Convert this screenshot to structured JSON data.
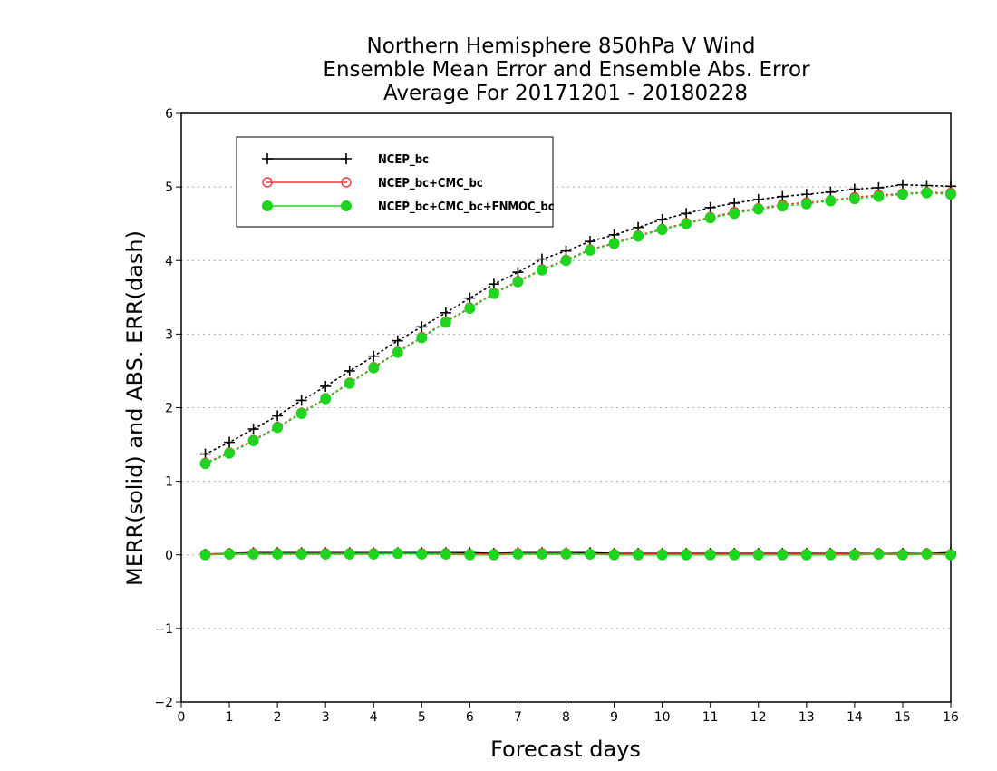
{
  "chart_data": {
    "type": "line",
    "title": [
      "Northern Hemisphere 850hPa V Wind",
      "Ensemble Mean Error and Ensemble Abs. Error",
      "Average For 20171201 - 20180228"
    ],
    "xlabel": "Forecast days",
    "ylabel": "MERR(solid) and ABS. ERR(dash)",
    "xlim": [
      0,
      16
    ],
    "ylim": [
      -2,
      6
    ],
    "x_ticks": [
      "0",
      "1",
      "2",
      "3",
      "4",
      "5",
      "6",
      "7",
      "8",
      "9",
      "10",
      "11",
      "12",
      "13",
      "14",
      "15",
      "16"
    ],
    "y_ticks": [
      "6",
      "5",
      "4",
      "3",
      "2",
      "1",
      "0",
      "−1",
      "−2"
    ],
    "grid": "horizontal dotted",
    "legend_position": "top-left",
    "x": [
      0.5,
      1,
      1.5,
      2,
      2.5,
      3,
      3.5,
      4,
      4.5,
      5,
      5.5,
      6,
      6.5,
      7,
      7.5,
      8,
      8.5,
      9,
      9.5,
      10,
      10.5,
      11,
      11.5,
      12,
      12.5,
      13,
      13.5,
      14,
      14.5,
      15,
      15.5,
      16
    ],
    "series": [
      {
        "name": "NCEP_bc",
        "color": "#000000",
        "marker": "plus",
        "abs_err": [
          1.37,
          1.53,
          1.71,
          1.89,
          2.1,
          2.29,
          2.5,
          2.7,
          2.91,
          3.1,
          3.29,
          3.49,
          3.68,
          3.84,
          4.02,
          4.13,
          4.26,
          4.35,
          4.45,
          4.56,
          4.64,
          4.72,
          4.78,
          4.83,
          4.87,
          4.9,
          4.93,
          4.97,
          4.99,
          5.03,
          5.02,
          5.01
        ],
        "mean_err": [
          0.01,
          0.02,
          0.03,
          0.03,
          0.03,
          0.03,
          0.03,
          0.03,
          0.03,
          0.03,
          0.03,
          0.03,
          0.02,
          0.03,
          0.03,
          0.03,
          0.03,
          0.02,
          0.02,
          0.02,
          0.02,
          0.02,
          0.02,
          0.02,
          0.02,
          0.02,
          0.02,
          0.02,
          0.02,
          0.02,
          0.02,
          0.03
        ]
      },
      {
        "name": "NCEP_bc+CMC_bc",
        "color": "#ee3a3a",
        "marker": "open-circle",
        "abs_err": [
          1.25,
          1.39,
          1.56,
          1.74,
          1.93,
          2.13,
          2.34,
          2.55,
          2.76,
          2.96,
          3.17,
          3.36,
          3.56,
          3.72,
          3.88,
          4.01,
          4.15,
          4.24,
          4.34,
          4.43,
          4.51,
          4.59,
          4.66,
          4.71,
          4.76,
          4.79,
          4.82,
          4.86,
          4.89,
          4.91,
          4.93,
          4.92
        ],
        "mean_err": [
          0.01,
          0.02,
          0.02,
          0.02,
          0.02,
          0.02,
          0.02,
          0.02,
          0.02,
          0.02,
          0.02,
          0.01,
          0.01,
          0.02,
          0.02,
          0.02,
          0.01,
          0.01,
          0.01,
          0.01,
          0.01,
          0.01,
          0.01,
          0.01,
          0.01,
          0.01,
          0.01,
          0.01,
          0.02,
          0.01,
          0.02,
          0.01
        ]
      },
      {
        "name": "NCEP_bc+CMC_bc+FNMOC_bc",
        "color": "#1ed41e",
        "marker": "filled-circle",
        "abs_err": [
          1.24,
          1.38,
          1.55,
          1.73,
          1.92,
          2.12,
          2.33,
          2.54,
          2.75,
          2.95,
          3.16,
          3.35,
          3.55,
          3.71,
          3.87,
          4.0,
          4.14,
          4.23,
          4.33,
          4.42,
          4.5,
          4.58,
          4.64,
          4.7,
          4.74,
          4.77,
          4.81,
          4.84,
          4.87,
          4.9,
          4.92,
          4.9
        ],
        "mean_err": [
          0.0,
          0.01,
          0.01,
          0.01,
          0.01,
          0.01,
          0.01,
          0.01,
          0.02,
          0.01,
          0.01,
          0.0,
          0.0,
          0.01,
          0.01,
          0.01,
          0.01,
          0.0,
          0.0,
          0.0,
          0.0,
          0.0,
          0.0,
          0.0,
          0.0,
          0.0,
          0.0,
          0.0,
          0.01,
          0.0,
          0.01,
          0.0
        ]
      }
    ]
  }
}
